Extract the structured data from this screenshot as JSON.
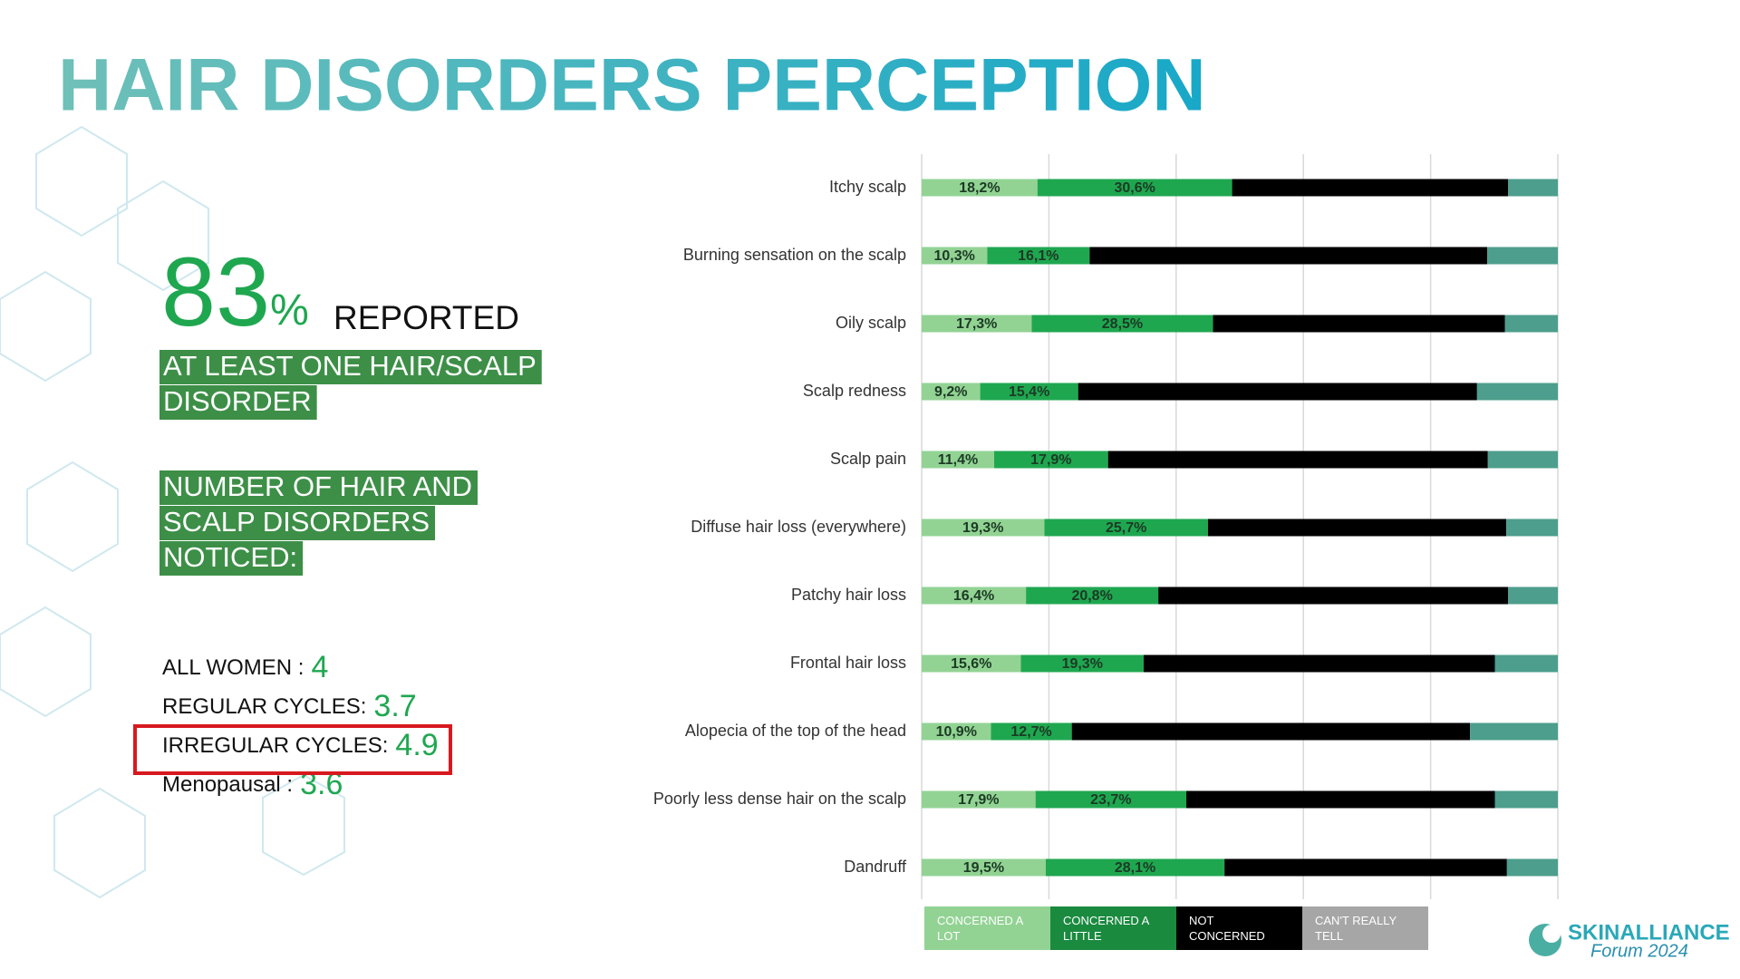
{
  "title": "HAIR DISORDERS PERCEPTION",
  "left_panel": {
    "big_number": 83,
    "percent_sign": "%",
    "reported": "REPORTED",
    "highlight_1": [
      "AT LEAST ONE HAIR/SCALP",
      "DISORDER"
    ],
    "highlight_2": [
      "NUMBER OF HAIR AND",
      "SCALP DISORDERS",
      "NOTICED:"
    ],
    "stats": [
      {
        "label": "ALL WOMEN :",
        "value": 4
      },
      {
        "label": "REGULAR CYCLES:",
        "value": 3.7
      },
      {
        "label": "IRREGULAR CYCLES:",
        "value": 4.9
      },
      {
        "label": "Menopausal :",
        "value": 3.6
      }
    ]
  },
  "logo": {
    "name": "SKINALLIANCE",
    "subtitle": "Forum 2024"
  },
  "chart_data": {
    "type": "stacked-bar-horizontal",
    "categories": [
      "Itchy scalp",
      "Burning sensation on the scalp",
      "Oily scalp",
      "Scalp redness",
      "Scalp pain",
      "Diffuse hair loss (everywhere)",
      "Patchy hair loss",
      "Frontal hair loss",
      "Alopecia of the top of the head",
      "Poorly less dense hair on the scalp",
      "Dandruff"
    ],
    "series": [
      {
        "name": "CONCERNED A LOT",
        "color": "#92d394",
        "legend_color": "#92d394",
        "values": [
          18.2,
          10.3,
          17.3,
          9.2,
          11.4,
          19.3,
          16.4,
          15.6,
          10.9,
          17.9,
          19.5
        ],
        "value_labels": [
          "18,2%",
          "10,3%",
          "17,3%",
          "9,2%",
          "11,4%",
          "19,3%",
          "16,4%",
          "15,6%",
          "10,9%",
          "17,9%",
          "19,5%"
        ]
      },
      {
        "name": "CONCERNED A LITTLE",
        "color": "#1fa750",
        "legend_color": "#1a8a3f",
        "values": [
          30.6,
          16.1,
          28.5,
          15.4,
          17.9,
          25.7,
          20.8,
          19.3,
          12.7,
          23.7,
          28.1
        ],
        "value_labels": [
          "30,6%",
          "16,1%",
          "28,5%",
          "15,4%",
          "17,9%",
          "25,7%",
          "20,8%",
          "19,3%",
          "12,7%",
          "23,7%",
          "28,1%"
        ]
      },
      {
        "name": "NOT CONCERNED",
        "color": "#000000",
        "legend_color": "#000000",
        "values": [
          43.4,
          62.5,
          45.9,
          62.7,
          59.7,
          46.9,
          55.0,
          55.2,
          62.6,
          48.5,
          44.4
        ]
      },
      {
        "name": "CAN'T REALLY TELL",
        "color": "#4d9e8c",
        "legend_color": "#a6a6a6",
        "values": [
          7.8,
          11.1,
          8.3,
          12.7,
          11.0,
          8.1,
          7.8,
          9.9,
          13.8,
          9.9,
          8.0
        ]
      }
    ],
    "xlim": [
      0,
      100
    ],
    "xticks": [
      0,
      20,
      40,
      60,
      80,
      100
    ],
    "grid": true
  }
}
